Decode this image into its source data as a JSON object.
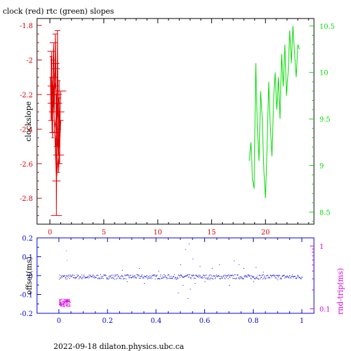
{
  "chart_data": [
    {
      "type": "line",
      "title": "clock (red) rtc (green) slopes",
      "ylabel": "clockslope",
      "x_ticks": [
        "0",
        "5",
        "10",
        "15",
        "20"
      ],
      "xlim": [
        -1.2,
        24.5
      ],
      "ylim_left": [
        -2.95,
        -1.76
      ],
      "yticks_left": [
        "-1.8",
        "-2",
        "-2.2",
        "-2.4",
        "-2.6",
        "-2.8"
      ],
      "ylim_right": [
        8.37,
        10.58
      ],
      "yticks_right": [
        "10.5",
        "10",
        "9.5",
        "9",
        "8.5"
      ],
      "colors": {
        "clock": "#dd0000",
        "rtc": "#00dd00",
        "axes": "#000000"
      },
      "series": [
        {
          "axis": "left",
          "x": [
            0.05,
            0.1,
            0.15,
            0.2,
            0.25,
            0.3,
            0.35,
            0.4,
            0.45,
            0.5,
            0.55,
            0.6,
            0.65,
            0.7,
            0.75,
            0.8,
            0.85,
            0.9,
            0.95,
            1.0,
            0.9,
            0.7,
            0.5,
            0.3,
            0.1,
            0.2,
            0.4,
            0.6,
            0.8,
            1.0,
            0.6,
            0.3,
            0.5,
            0.8,
            0.4
          ],
          "y": [
            -2.1,
            -2.35,
            -1.95,
            -2.2,
            -2.45,
            -2.0,
            -1.9,
            -2.3,
            -2.15,
            -1.85,
            -2.05,
            -2.9,
            -2.4,
            -1.83,
            -2.25,
            -2.55,
            -2.12,
            -2.6,
            -2.3,
            -2.18,
            -2.4,
            -2.5,
            -2.02,
            -2.25,
            -1.98,
            -2.42,
            -2.1,
            -2.2,
            -2.65,
            -2.35,
            -2.7,
            -2.15,
            -2.5,
            -2.22,
            -2.42
          ]
        },
        {
          "axis": "right",
          "x": [
            18.5,
            18.65,
            18.8,
            18.95,
            19.1,
            19.25,
            19.4,
            19.55,
            19.7,
            19.85,
            20.0,
            20.15,
            20.3,
            20.45,
            20.6,
            20.75,
            20.9,
            21.05,
            21.2,
            21.35,
            21.5,
            21.65,
            21.8,
            21.95,
            22.1,
            22.25,
            22.4,
            22.55,
            22.7,
            22.85,
            23.0,
            23.15
          ],
          "y": [
            9.05,
            9.25,
            8.85,
            8.75,
            10.1,
            9.4,
            9.05,
            9.8,
            9.5,
            8.95,
            8.65,
            9.2,
            9.9,
            9.4,
            9.1,
            9.7,
            10.0,
            9.6,
            9.95,
            9.5,
            10.2,
            9.85,
            10.3,
            9.75,
            10.0,
            10.45,
            10.1,
            10.5,
            10.2,
            9.95,
            10.3,
            10.25
          ]
        }
      ]
    },
    {
      "type": "scatter",
      "ylabel_left": "offset(ms)",
      "ylabel_right": "rnd-trip(ms)",
      "x_ticks": [
        "0",
        "0.2",
        "0.4",
        "0.6",
        "0.8",
        "1"
      ],
      "xlim": [
        -0.09,
        1.05
      ],
      "ylim_left": [
        -0.2,
        0.2
      ],
      "yticks_left": [
        "0.2",
        "0.1",
        "0",
        "-0.1",
        "-0.2"
      ],
      "ylim_right": [
        0.085,
        1.35
      ],
      "yscale_right": "log",
      "yticks_right": [
        "1",
        "0.1"
      ],
      "colors": {
        "offset": "#0000dd",
        "rnd_trip": "#dd00dd"
      },
      "offset_band": {
        "x_range": [
          0,
          1
        ],
        "center": -0.005,
        "spread": 0.012
      },
      "offset_outliers": {
        "x": [
          0.26,
          0.28,
          0.33,
          0.35,
          0.41,
          0.49,
          0.5,
          0.51,
          0.52,
          0.53,
          0.535,
          0.54,
          0.55,
          0.56,
          0.58,
          0.6,
          0.62,
          0.63,
          0.66,
          0.7,
          0.72,
          0.74,
          0.76,
          0.8,
          0.81,
          0.84,
          0.9
        ],
        "y": [
          0.03,
          -0.03,
          0.04,
          -0.04,
          0.025,
          -0.09,
          0.06,
          -0.05,
          0.14,
          -0.12,
          0.17,
          -0.07,
          0.09,
          -0.04,
          0.05,
          -0.03,
          -0.02,
          0.04,
          0.06,
          -0.05,
          0.08,
          0.06,
          0.04,
          -0.03,
          0.045,
          0.02,
          -0.02
        ]
      },
      "rnd_trip": {
        "x_range": [
          0.0,
          0.045
        ],
        "y_range": [
          0.11,
          0.145
        ],
        "spikes": [
          {
            "x": 0.03,
            "y": 0.85
          },
          {
            "x": 0.032,
            "y": 0.6
          },
          {
            "x": 0.028,
            "y": 0.3
          }
        ]
      }
    }
  ],
  "footer": {
    "text": "2022-09-18 dilaton.physics.ubc.ca"
  }
}
